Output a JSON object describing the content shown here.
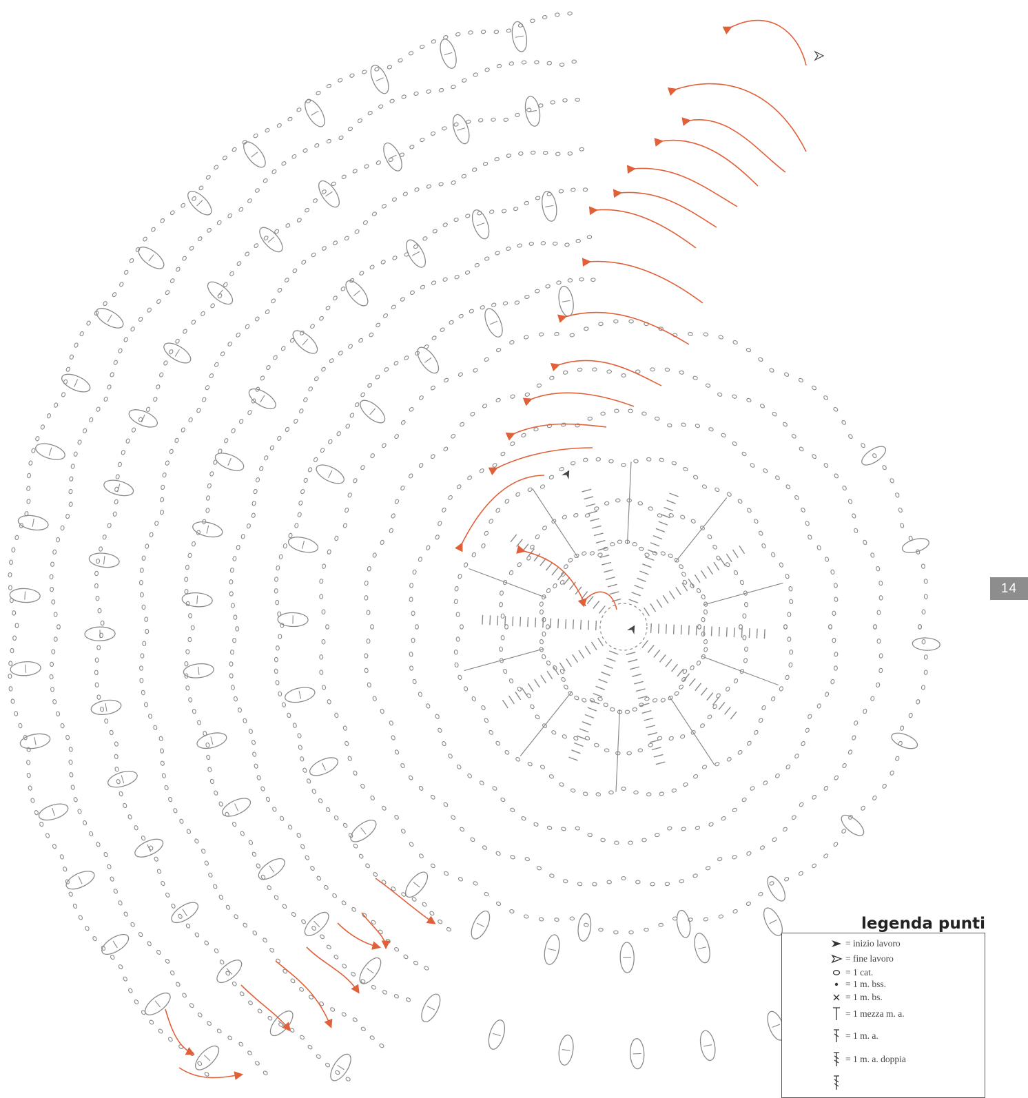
{
  "page_number": "14",
  "legend": {
    "title": "legenda punti",
    "items": [
      {
        "symbol": "start-arrow-icon",
        "text": "= inizio lavoro"
      },
      {
        "symbol": "end-arrow-icon",
        "text": "= fine lavoro"
      },
      {
        "symbol": "chain-icon",
        "text": "= 1 cat."
      },
      {
        "symbol": "slip-stitch-icon",
        "text": "= 1 m. bss."
      },
      {
        "symbol": "single-crochet-icon",
        "text": "= 1 m. bs."
      },
      {
        "symbol": "half-double-icon",
        "text": "= 1 mezza m. a."
      },
      {
        "symbol": "double-crochet-icon",
        "text": "= 1 m. a."
      },
      {
        "symbol": "treble-crochet-icon",
        "text": "= 1 m. a. doppia"
      }
    ]
  },
  "colors": {
    "stitch": "#8a8a8a",
    "direction_arrows": "#e0603a",
    "start_marker": "#444444",
    "tab": "#8d8d8d"
  }
}
